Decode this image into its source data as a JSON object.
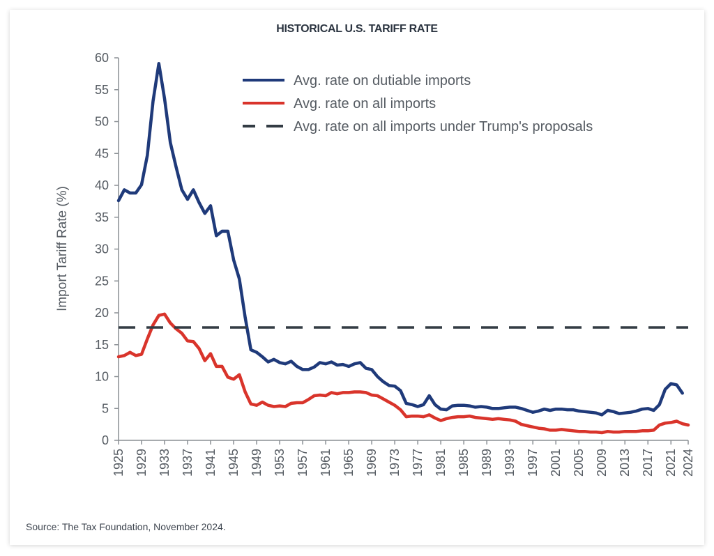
{
  "chart_data": {
    "type": "line",
    "title": "HISTORICAL U.S. TARIFF RATE",
    "xlabel": "",
    "ylabel": "Import Tariff Rate (%)",
    "ylim": [
      0,
      60
    ],
    "xlim": [
      1925,
      2024
    ],
    "yticks": [
      0,
      5,
      10,
      15,
      20,
      25,
      30,
      35,
      40,
      45,
      50,
      55,
      60
    ],
    "xticks": [
      1925,
      1929,
      1933,
      1937,
      1941,
      1945,
      1949,
      1953,
      1957,
      1961,
      1965,
      1969,
      1973,
      1977,
      1981,
      1985,
      1989,
      1993,
      1997,
      2001,
      2005,
      2009,
      2013,
      2017,
      2021,
      2024
    ],
    "grid": false,
    "legend_position": "top-right",
    "series": [
      {
        "name": "Avg. rate on dutiable imports",
        "color": "#1f3a7a",
        "style": "solid",
        "x": [
          1925,
          1926,
          1927,
          1928,
          1929,
          1930,
          1931,
          1932,
          1933,
          1934,
          1935,
          1936,
          1937,
          1938,
          1939,
          1940,
          1941,
          1942,
          1943,
          1944,
          1945,
          1946,
          1947,
          1948,
          1949,
          1950,
          1951,
          1952,
          1953,
          1954,
          1955,
          1956,
          1957,
          1958,
          1959,
          1960,
          1961,
          1962,
          1963,
          1964,
          1965,
          1966,
          1967,
          1968,
          1969,
          1970,
          1971,
          1972,
          1973,
          1974,
          1975,
          1976,
          1977,
          1978,
          1979,
          1980,
          1981,
          1982,
          1983,
          1984,
          1985,
          1986,
          1987,
          1988,
          1989,
          1990,
          1991,
          1992,
          1993,
          1994,
          1995,
          1996,
          1997,
          1998,
          1999,
          2000,
          2001,
          2002,
          2003,
          2004,
          2005,
          2006,
          2007,
          2008,
          2009,
          2010,
          2011,
          2012,
          2013,
          2014,
          2015,
          2016,
          2017,
          2018,
          2019,
          2020,
          2021,
          2022,
          2023
        ],
        "values": [
          37.6,
          39.3,
          38.8,
          38.8,
          40.1,
          44.7,
          53.2,
          59.1,
          53.6,
          46.7,
          42.9,
          39.3,
          37.8,
          39.3,
          37.3,
          35.6,
          36.8,
          32.1,
          32.8,
          32.8,
          28.3,
          25.3,
          19.3,
          14.2,
          13.8,
          13.1,
          12.3,
          12.7,
          12.2,
          12.0,
          12.4,
          11.6,
          11.1,
          11.1,
          11.5,
          12.2,
          12.0,
          12.3,
          11.8,
          11.9,
          11.6,
          12.0,
          12.2,
          11.3,
          11.1,
          10.0,
          9.2,
          8.6,
          8.5,
          7.8,
          5.8,
          5.6,
          5.3,
          5.6,
          7.0,
          5.6,
          4.9,
          4.8,
          5.4,
          5.5,
          5.5,
          5.4,
          5.2,
          5.3,
          5.2,
          5.0,
          5.0,
          5.1,
          5.2,
          5.2,
          5.0,
          4.7,
          4.4,
          4.6,
          4.9,
          4.7,
          4.9,
          4.9,
          4.8,
          4.8,
          4.6,
          4.5,
          4.4,
          4.3,
          4.0,
          4.7,
          4.5,
          4.2,
          4.3,
          4.4,
          4.6,
          4.9,
          5.0,
          4.7,
          5.6,
          8.0,
          8.9,
          8.7,
          7.4
        ]
      },
      {
        "name": "Avg. rate on all imports",
        "color": "#d9342b",
        "style": "solid",
        "x": [
          1925,
          1926,
          1927,
          1928,
          1929,
          1930,
          1931,
          1932,
          1933,
          1934,
          1935,
          1936,
          1937,
          1938,
          1939,
          1940,
          1941,
          1942,
          1943,
          1944,
          1945,
          1946,
          1947,
          1948,
          1949,
          1950,
          1951,
          1952,
          1953,
          1954,
          1955,
          1956,
          1957,
          1958,
          1959,
          1960,
          1961,
          1962,
          1963,
          1964,
          1965,
          1966,
          1967,
          1968,
          1969,
          1970,
          1971,
          1972,
          1973,
          1974,
          1975,
          1976,
          1977,
          1978,
          1979,
          1980,
          1981,
          1982,
          1983,
          1984,
          1985,
          1986,
          1987,
          1988,
          1989,
          1990,
          1991,
          1992,
          1993,
          1994,
          1995,
          1996,
          1997,
          1998,
          1999,
          2000,
          2001,
          2002,
          2003,
          2004,
          2005,
          2006,
          2007,
          2008,
          2009,
          2010,
          2011,
          2012,
          2013,
          2014,
          2015,
          2016,
          2017,
          2018,
          2019,
          2020,
          2021,
          2022,
          2023,
          2024
        ],
        "values": [
          13.1,
          13.3,
          13.8,
          13.3,
          13.5,
          15.9,
          18.1,
          19.6,
          19.8,
          18.4,
          17.5,
          16.8,
          15.6,
          15.5,
          14.4,
          12.5,
          13.6,
          11.6,
          11.6,
          9.9,
          9.6,
          10.3,
          7.6,
          5.7,
          5.5,
          6.0,
          5.5,
          5.3,
          5.4,
          5.3,
          5.8,
          5.9,
          5.9,
          6.4,
          7.0,
          7.1,
          7.0,
          7.5,
          7.3,
          7.5,
          7.5,
          7.6,
          7.6,
          7.5,
          7.1,
          7.0,
          6.5,
          6.0,
          5.5,
          4.8,
          3.7,
          3.8,
          3.8,
          3.7,
          4.0,
          3.5,
          3.1,
          3.4,
          3.6,
          3.7,
          3.7,
          3.8,
          3.6,
          3.5,
          3.4,
          3.3,
          3.4,
          3.3,
          3.2,
          3.0,
          2.5,
          2.3,
          2.1,
          1.9,
          1.8,
          1.6,
          1.6,
          1.7,
          1.6,
          1.5,
          1.4,
          1.4,
          1.3,
          1.3,
          1.2,
          1.4,
          1.3,
          1.3,
          1.4,
          1.4,
          1.4,
          1.5,
          1.5,
          1.6,
          2.4,
          2.7,
          2.8,
          3.0,
          2.6,
          2.4
        ]
      },
      {
        "name": "Avg. rate on all imports under Trump's proposals",
        "color": "#333c44",
        "style": "dashed",
        "x": [
          1925,
          2024
        ],
        "values": [
          17.7,
          17.7
        ]
      }
    ]
  },
  "footer": {
    "source": "Source: The Tax Foundation, November 2024."
  }
}
